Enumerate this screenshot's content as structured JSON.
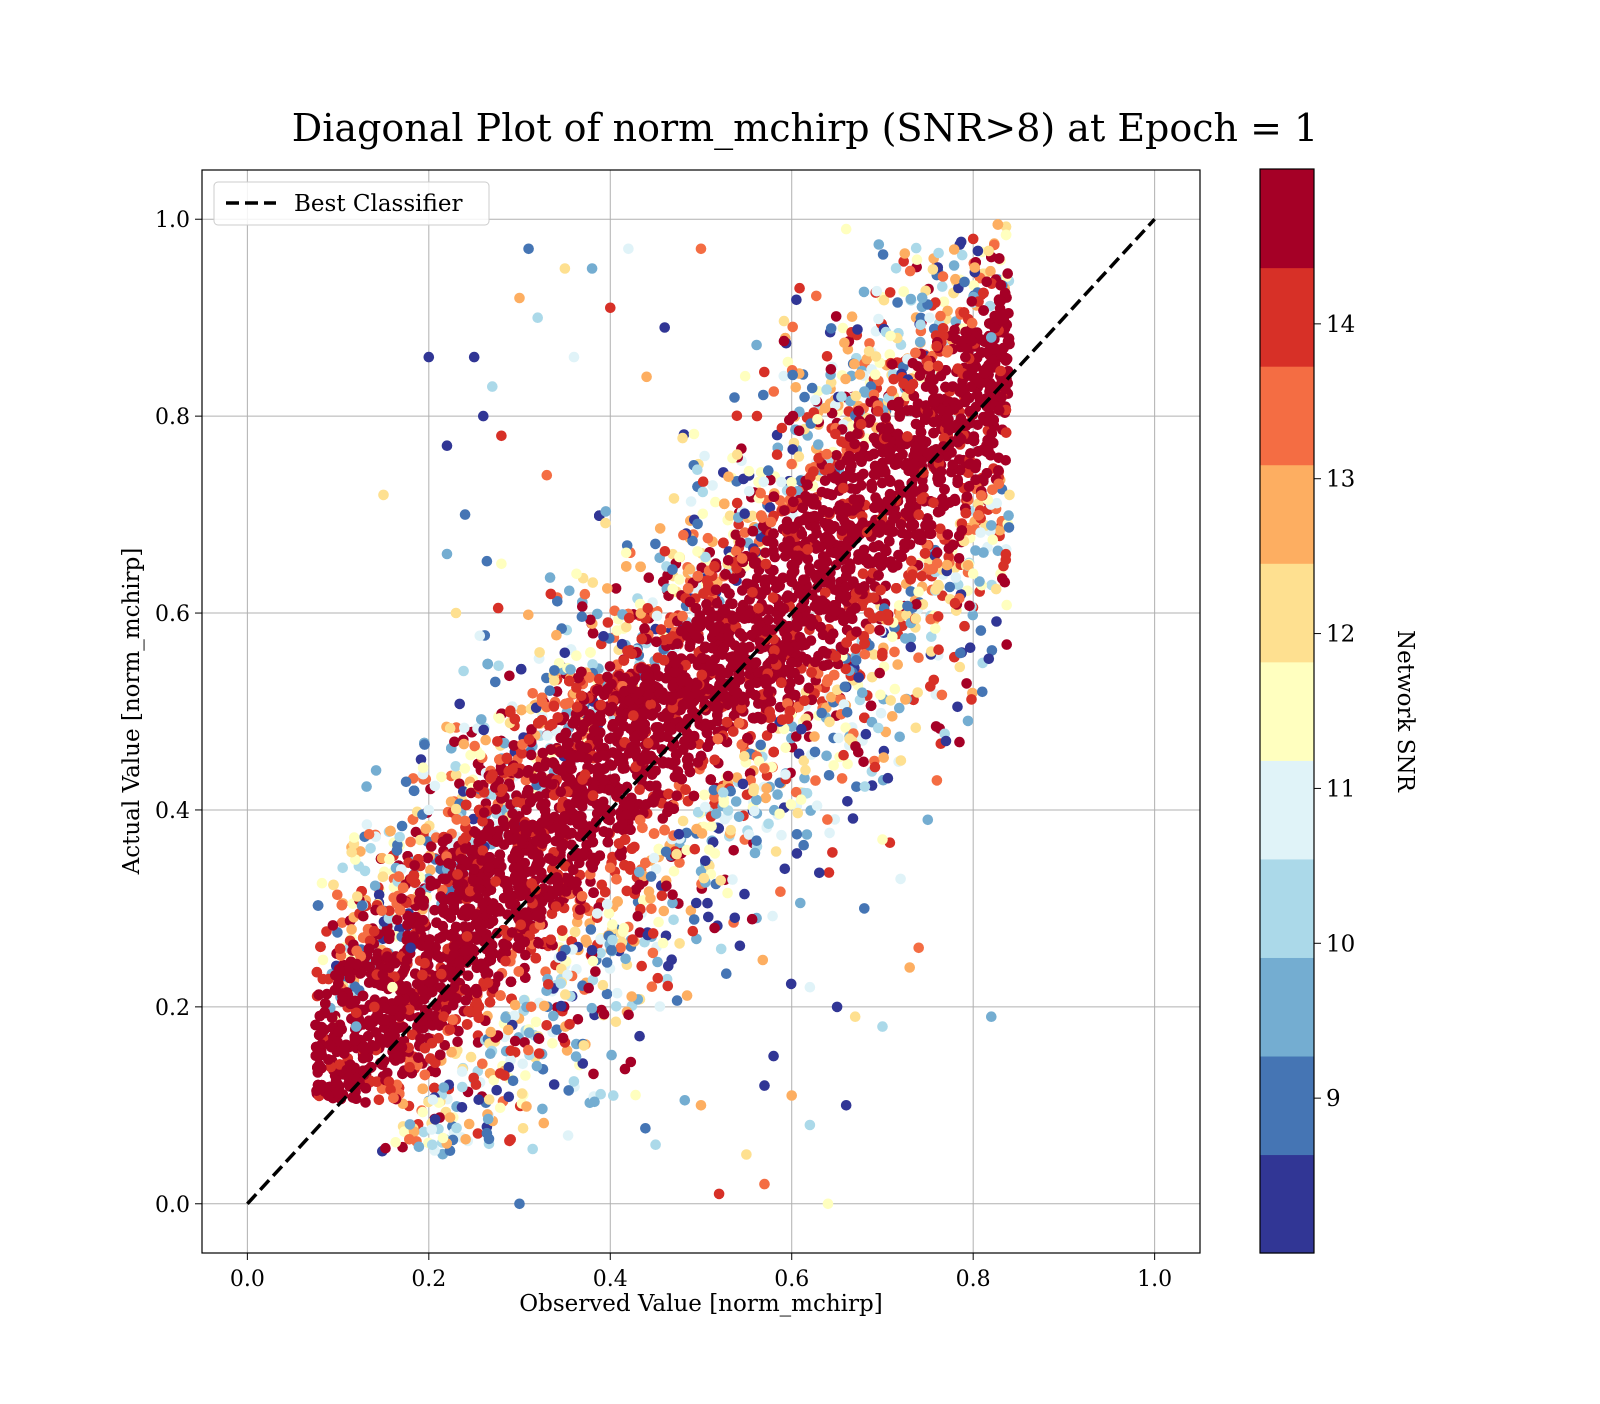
{
  "chart_data": {
    "type": "scatter",
    "title": "Diagonal Plot of norm_mchirp (SNR>8) at Epoch = 1",
    "xlabel": "Observed Value [norm_mchirp]",
    "ylabel": "Actual Value [norm_mchirp]",
    "xlim": [
      -0.05,
      1.05
    ],
    "ylim": [
      -0.05,
      1.05
    ],
    "x_ticks": [
      "0.0",
      "0.2",
      "0.4",
      "0.6",
      "0.8",
      "1.0"
    ],
    "y_ticks": [
      "0.0",
      "0.2",
      "0.4",
      "0.6",
      "0.8",
      "1.0"
    ],
    "grid": true,
    "legend": {
      "placement": "top-left",
      "entries": [
        "Best Classifier"
      ]
    },
    "reference_line": {
      "name": "Best Classifier",
      "style": "dashed",
      "color": "#000000",
      "x": [
        0.0,
        1.0
      ],
      "y": [
        0.0,
        1.0
      ]
    },
    "colorbar": {
      "label": "Network SNR",
      "range": [
        8,
        15
      ],
      "tick_values": [
        9,
        10,
        11,
        12,
        13,
        14
      ],
      "tick_labels": [
        "9",
        "10",
        "11",
        "12",
        "13",
        "14"
      ],
      "colors": [
        "#313695",
        "#4575b4",
        "#74add1",
        "#abd9e9",
        "#e0f3f8",
        "#ffffbf",
        "#fee090",
        "#fdae61",
        "#f46d43",
        "#d73027",
        "#a50026"
      ]
    },
    "series": [
      {
        "description_of_distribution": "",
        "points": [
          [
            0.2,
            0.86
          ],
          [
            0.15,
            0.72
          ],
          [
            0.82,
            0.19
          ],
          [
            0.52,
            0.01
          ],
          [
            0.64,
            0.0
          ],
          [
            0.31,
            0.97
          ],
          [
            0.5,
            0.97
          ],
          [
            0.42,
            0.97
          ],
          [
            0.22,
            0.77
          ],
          [
            0.3,
            0.92
          ],
          [
            0.27,
            0.83
          ],
          [
            0.25,
            0.86
          ],
          [
            0.35,
            0.95
          ],
          [
            0.38,
            0.95
          ],
          [
            0.4,
            0.91
          ],
          [
            0.28,
            0.65
          ],
          [
            0.24,
            0.7
          ],
          [
            0.33,
            0.74
          ],
          [
            0.2,
            0.4
          ],
          [
            0.18,
            0.26
          ],
          [
            0.73,
            0.24
          ],
          [
            0.7,
            0.18
          ],
          [
            0.65,
            0.2
          ],
          [
            0.67,
            0.19
          ],
          [
            0.75,
            0.39
          ],
          [
            0.78,
            0.61
          ],
          [
            0.8,
            0.64
          ],
          [
            0.81,
            0.52
          ],
          [
            0.76,
            0.43
          ],
          [
            0.72,
            0.33
          ],
          [
            0.57,
            0.12
          ],
          [
            0.6,
            0.11
          ],
          [
            0.62,
            0.08
          ],
          [
            0.66,
            0.1
          ],
          [
            0.55,
            0.05
          ],
          [
            0.12,
            0.18
          ],
          [
            0.14,
            0.2
          ],
          [
            0.16,
            0.22
          ],
          [
            0.3,
            0.0
          ],
          [
            0.57,
            0.02
          ],
          [
            0.36,
            0.86
          ],
          [
            0.46,
            0.89
          ],
          [
            0.44,
            0.84
          ],
          [
            0.32,
            0.9
          ],
          [
            0.26,
            0.8
          ],
          [
            0.23,
            0.6
          ],
          [
            0.22,
            0.66
          ],
          [
            0.28,
            0.78
          ],
          [
            0.7,
            0.37
          ],
          [
            0.68,
            0.3
          ],
          [
            0.74,
            0.26
          ],
          [
            0.62,
            0.22
          ],
          [
            0.58,
            0.15
          ],
          [
            0.5,
            0.1
          ],
          [
            0.45,
            0.06
          ],
          [
            0.77,
            0.47
          ],
          [
            0.84,
            0.72
          ],
          [
            0.82,
            0.88
          ],
          [
            0.8,
            0.98
          ],
          [
            0.66,
            0.99
          ]
        ]
      }
    ]
  }
}
